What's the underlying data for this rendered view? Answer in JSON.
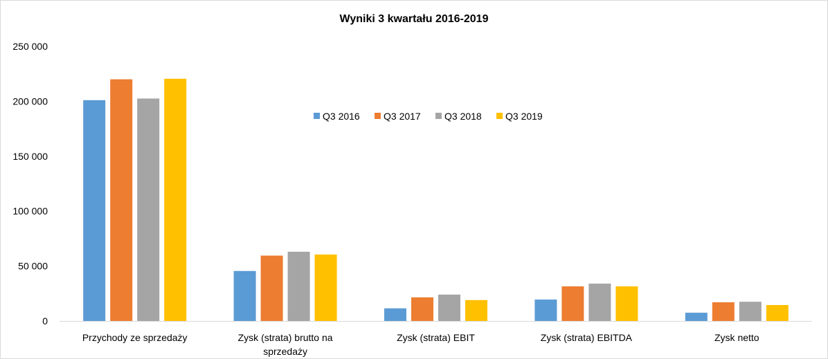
{
  "chart_data": {
    "type": "bar",
    "title": "Wyniki 3 kwartału 2016-2019",
    "xlabel": "",
    "ylabel": "",
    "ylim": [
      0,
      250000
    ],
    "y_ticks": [
      0,
      50000,
      100000,
      150000,
      200000,
      250000
    ],
    "y_tick_labels": [
      "0",
      "50 000",
      "100 000",
      "150 000",
      "200 000",
      "250 000"
    ],
    "categories": [
      [
        "Przychody ze sprzedaży"
      ],
      [
        "Zysk (strata) brutto na",
        "sprzedaży"
      ],
      [
        "Zysk (strata) EBIT"
      ],
      [
        "Zysk (strata) EBITDA"
      ],
      [
        "Zysk netto"
      ]
    ],
    "series": [
      {
        "name": "Q3 2016",
        "color": "#5B9BD5",
        "values": [
          201000,
          45500,
          11500,
          19500,
          7500
        ]
      },
      {
        "name": "Q3 2017",
        "color": "#ED7D31",
        "values": [
          220000,
          59500,
          21500,
          31500,
          17000
        ]
      },
      {
        "name": "Q3 2018",
        "color": "#A5A5A5",
        "values": [
          202500,
          63000,
          24000,
          34000,
          17500
        ]
      },
      {
        "name": "Q3 2019",
        "color": "#FFC000",
        "values": [
          220500,
          60500,
          19000,
          31500,
          14500
        ]
      }
    ],
    "grid": false,
    "legend_position": "top-center"
  }
}
